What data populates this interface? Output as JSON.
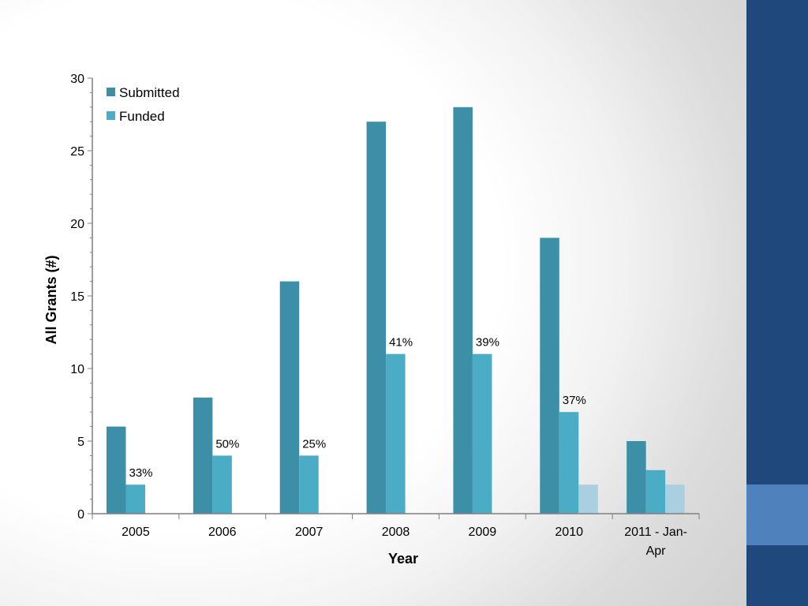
{
  "colors": {
    "sidebar": "#1f497d",
    "sidebar_accent": "#4f81bd",
    "submitted": "#3d8fa8",
    "funded": "#4bacc6",
    "funded_light": "#a9cfe0"
  },
  "chart_data": {
    "type": "bar",
    "title": "",
    "xlabel": "Year",
    "ylabel": "All Grants (#)",
    "ylim": [
      0,
      30
    ],
    "yticks": [
      0,
      5,
      10,
      15,
      20,
      25,
      30
    ],
    "grid": false,
    "legend_position": "top-left",
    "categories": [
      "2005",
      "2006",
      "2007",
      "2008",
      "2009",
      "2010",
      "2011 - Jan-Apr"
    ],
    "category_labels": [
      [
        "2005"
      ],
      [
        "2006"
      ],
      [
        "2007"
      ],
      [
        "2008"
      ],
      [
        "2009"
      ],
      [
        "2010"
      ],
      [
        "2011 - Jan-",
        "Apr"
      ]
    ],
    "series": [
      {
        "name": "Submitted",
        "values": [
          6,
          8,
          16,
          27,
          28,
          19,
          5
        ]
      },
      {
        "name": "Funded",
        "values": [
          2,
          4,
          4,
          11,
          11,
          7,
          3
        ]
      },
      {
        "values": [
          null,
          null,
          null,
          null,
          null,
          2,
          2
        ]
      }
    ],
    "data_labels": [
      "33%",
      "50%",
      "25%",
      "41%",
      "39%",
      "37%",
      ""
    ]
  }
}
